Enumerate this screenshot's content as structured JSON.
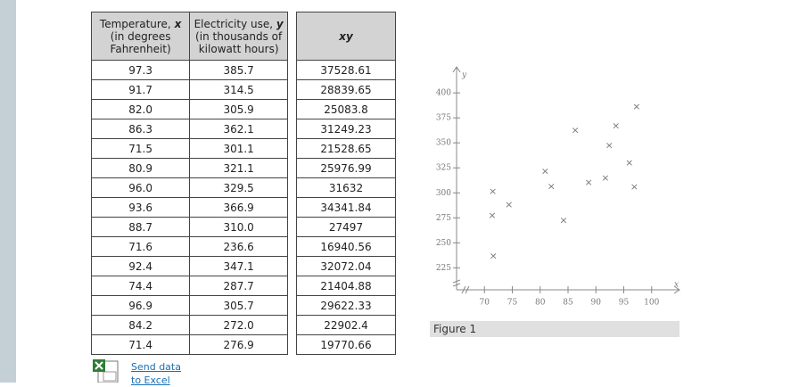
{
  "table": {
    "headers": [
      {
        "text": "Temperature, ",
        "var": "x",
        "note": "(in degrees Fahrenheit)"
      },
      {
        "text": "Electricity use, ",
        "var": "y",
        "note": "(in thousands of kilowatt hours)"
      }
    ],
    "rows": [
      [
        "97.3",
        "385.7"
      ],
      [
        "91.7",
        "314.5"
      ],
      [
        "82.0",
        "305.9"
      ],
      [
        "86.3",
        "362.1"
      ],
      [
        "71.5",
        "301.1"
      ],
      [
        "80.9",
        "321.1"
      ],
      [
        "96.0",
        "329.5"
      ],
      [
        "93.6",
        "366.9"
      ],
      [
        "88.7",
        "310.0"
      ],
      [
        "71.6",
        "236.6"
      ],
      [
        "92.4",
        "347.1"
      ],
      [
        "74.4",
        "287.7"
      ],
      [
        "96.9",
        "305.7"
      ],
      [
        "84.2",
        "272.0"
      ],
      [
        "71.4",
        "276.9"
      ]
    ]
  },
  "xy_table": {
    "header": "xy",
    "rows": [
      "37528.61",
      "28839.65",
      "25083.8",
      "31249.23",
      "21528.65",
      "25976.99",
      "31632",
      "34341.84",
      "27497",
      "16940.56",
      "32072.04",
      "21404.88",
      "29622.33",
      "22902.4",
      "19770.66"
    ]
  },
  "chart_data": {
    "type": "scatter",
    "x_label": "x",
    "y_label": "y",
    "color": "#4a4ae0",
    "x": [
      97.3,
      91.7,
      82.0,
      86.3,
      71.5,
      80.9,
      96.0,
      93.6,
      88.7,
      71.6,
      92.4,
      74.4,
      96.9,
      84.2,
      71.4
    ],
    "values": [
      385.7,
      314.5,
      305.9,
      362.1,
      301.1,
      321.1,
      329.5,
      366.9,
      310.0,
      236.6,
      347.1,
      287.7,
      305.7,
      272.0,
      276.9
    ],
    "xlim": [
      65,
      105
    ],
    "ylim": [
      203,
      426
    ],
    "xticks": [
      70,
      75,
      80,
      85,
      90,
      95,
      100
    ],
    "yticks": [
      225,
      250,
      275,
      300,
      325,
      350,
      375,
      400
    ]
  },
  "figure_caption": "Figure 1",
  "link": "Send data to Excel"
}
